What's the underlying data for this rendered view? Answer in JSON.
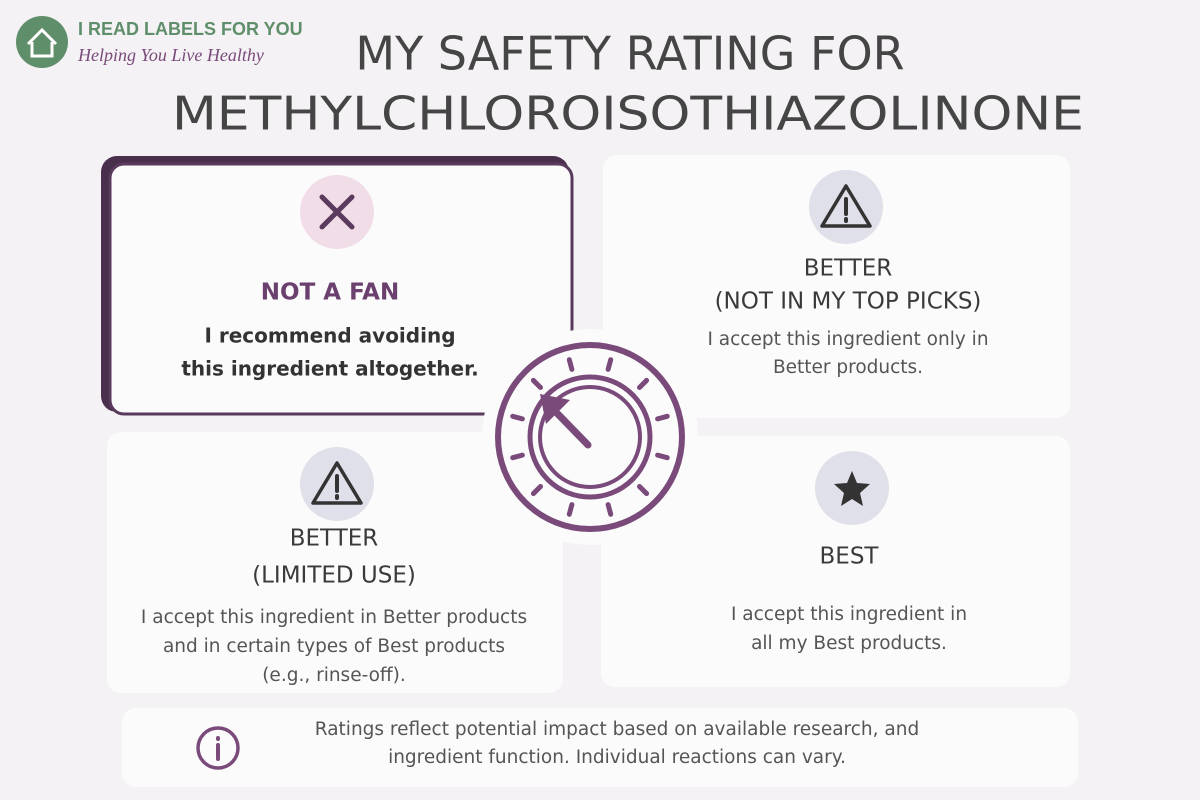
{
  "logo": {
    "name": "I READ LABELS FOR YOU",
    "tagline": "Helping You Live Healthy"
  },
  "title": [
    "MY SAFETY RATING FOR",
    "METHYLCHLOROISOTHIAZOLINONE"
  ],
  "cards": [
    {
      "heading": [
        "NOT A FAN"
      ],
      "body": [
        "I recommend avoiding",
        "this ingredient altogether."
      ]
    },
    {
      "heading": [
        "BETTER",
        "(NOT IN MY TOP PICKS)"
      ],
      "body": [
        "I accept this ingredient only in",
        "Better products."
      ]
    },
    {
      "heading": [
        "BETTER",
        "(LIMITED USE)"
      ],
      "body": [
        "I accept this ingredient in Better products",
        "and in certain types of Best products",
        "(e.g., rinse-off)."
      ]
    },
    {
      "heading": [
        "BEST"
      ],
      "body": [
        "I accept this ingredient in",
        "all my Best products."
      ]
    }
  ],
  "note": [
    "Ratings reflect potential impact based on available research, and",
    "ingredient function. Individual reactions can vary."
  ]
}
